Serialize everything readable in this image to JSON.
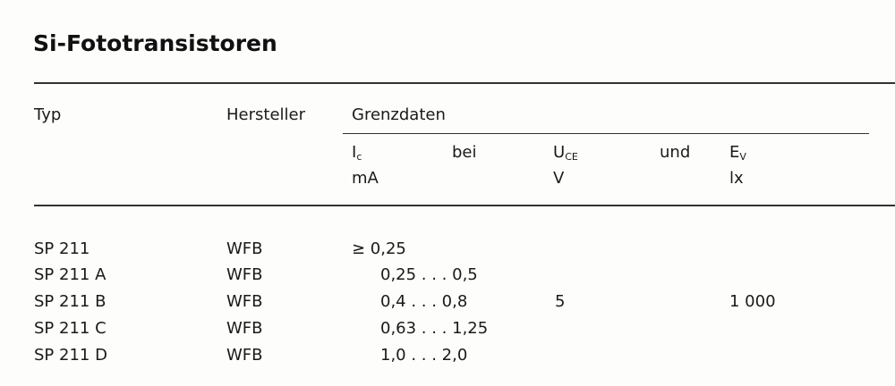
{
  "title": "Si-Fototransistoren",
  "headers": {
    "typ": "Typ",
    "hersteller": "Hersteller",
    "grenzdaten": "Grenzdaten",
    "ic": "I",
    "ic_sub": "c",
    "ic_unit": "mA",
    "bei": "bei",
    "uce": "U",
    "uce_sub": "CE",
    "uce_unit": "V",
    "und": "und",
    "ev": "E",
    "ev_sub": "V",
    "ev_unit": "lx"
  },
  "rows": [
    {
      "typ": "SP 211",
      "hersteller": "WFB",
      "ic": "≥ 0,25"
    },
    {
      "typ": "SP 211 A",
      "hersteller": "WFB",
      "ic": "0,25 . . . 0,5"
    },
    {
      "typ": "SP 211 B",
      "hersteller": "WFB",
      "ic": "0,4  . . . 0,8"
    },
    {
      "typ": "SP 211 C",
      "hersteller": "WFB",
      "ic": "0,63 . . . 1,25"
    },
    {
      "typ": "SP 211 D",
      "hersteller": "WFB",
      "ic": "1,0  . . . 2,0"
    }
  ],
  "shared": {
    "uce": "5",
    "ev": "1 000"
  }
}
